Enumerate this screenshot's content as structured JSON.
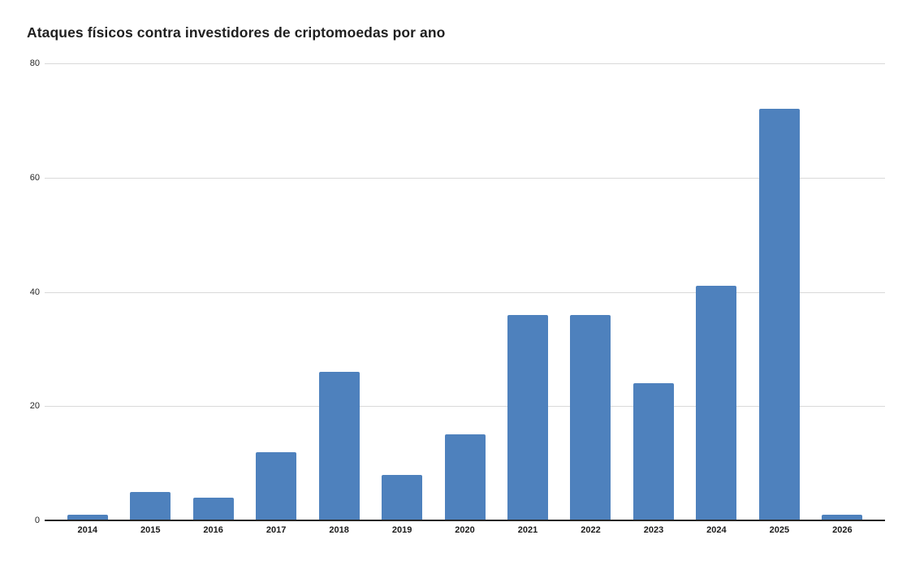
{
  "header": {
    "title": "Ataques físicos contra investidores de criptomoedas por ano"
  },
  "colors": {
    "bar": "#4e81bd",
    "grid": "#d9d9d9",
    "axis": "#262626",
    "title_text": "#1f1f1f",
    "tick_text": "#262626"
  },
  "chart_data": {
    "type": "bar",
    "title": "Ataques físicos contra investidores de criptomoedas por ano",
    "categories": [
      "2014",
      "2015",
      "2016",
      "2017",
      "2018",
      "2019",
      "2020",
      "2021",
      "2022",
      "2023",
      "2024",
      "2025",
      "2026"
    ],
    "values": [
      1,
      5,
      4,
      12,
      26,
      8,
      15,
      36,
      36,
      24,
      41,
      72,
      1
    ],
    "xlabel": "",
    "ylabel": "",
    "ylim": [
      0,
      80
    ],
    "yticks": [
      0,
      20,
      40,
      60,
      80
    ],
    "grid": "horizontal-only",
    "legend": "none",
    "bar_color": "#4e81bd"
  }
}
